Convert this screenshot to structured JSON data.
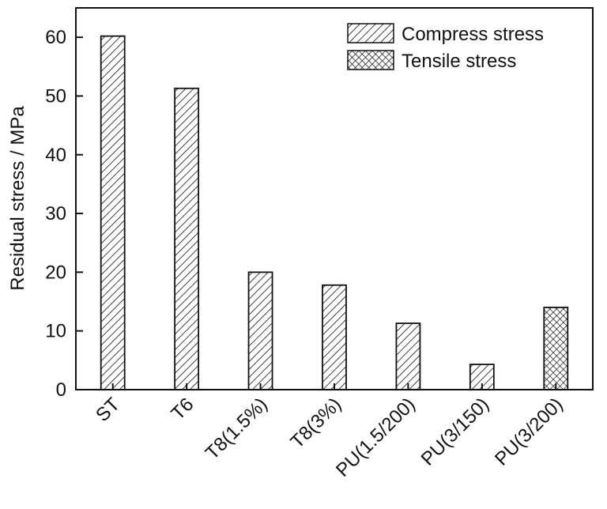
{
  "chart_data": {
    "type": "bar",
    "title": "",
    "xlabel": "",
    "ylabel": "Residual stress / MPa",
    "ylim": [
      0,
      65
    ],
    "yticks": [
      0,
      10,
      20,
      30,
      40,
      50,
      60
    ],
    "categories": [
      "ST",
      "T6",
      "T8(1.5%)",
      "T8(3%)",
      "PU(1.5/200)",
      "PU(3/150)",
      "PU(3/200)"
    ],
    "series": [
      {
        "name": "Compress stress",
        "pattern": "diagonal-hatch",
        "values": [
          60.2,
          51.3,
          20.0,
          17.8,
          11.3,
          4.3,
          null
        ]
      },
      {
        "name": "Tensile stress",
        "pattern": "cross-hatch",
        "values": [
          null,
          null,
          null,
          null,
          null,
          null,
          14.0
        ]
      }
    ],
    "grid": false,
    "legend_position": "top-right",
    "colors": {
      "bar_stroke": "#111111",
      "hatch": "#111111",
      "background": "#ffffff",
      "axis": "#111111"
    }
  }
}
